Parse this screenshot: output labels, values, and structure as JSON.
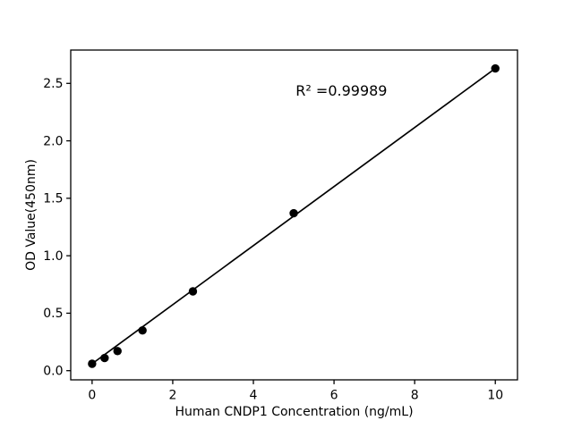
{
  "figure": {
    "background": "#ffffff"
  },
  "chart_data": {
    "type": "scatter",
    "title": "",
    "xlabel": "Human CNDP1 Concentration (ng/mL)",
    "ylabel": "OD Value(450nm)",
    "annotation": "R² =0.99989",
    "x": [
      0,
      0.31,
      0.63,
      1.25,
      2.5,
      5,
      10
    ],
    "y": [
      0.06,
      0.11,
      0.17,
      0.35,
      0.69,
      1.37,
      2.63
    ],
    "fit_line": {
      "x1": 0.0,
      "y1": 0.06,
      "x2": 10.0,
      "y2": 2.63
    },
    "xticks": {
      "values": [
        0,
        2,
        4,
        6,
        8,
        10
      ],
      "labels": [
        "0",
        "2",
        "4",
        "6",
        "8",
        "10"
      ]
    },
    "yticks": {
      "values": [
        0,
        0.5,
        1.0,
        1.5,
        2.0,
        2.5
      ],
      "labels": [
        "0.0",
        "0.5",
        "1.0",
        "1.5",
        "2.0",
        "2.5"
      ]
    },
    "xlim": [
      -0.53,
      10.55
    ],
    "ylim": [
      -0.08,
      2.79
    ],
    "marker_color": "#000000",
    "line_color": "#000000",
    "axis_color": "#000000",
    "grid": false,
    "legend": "none"
  }
}
